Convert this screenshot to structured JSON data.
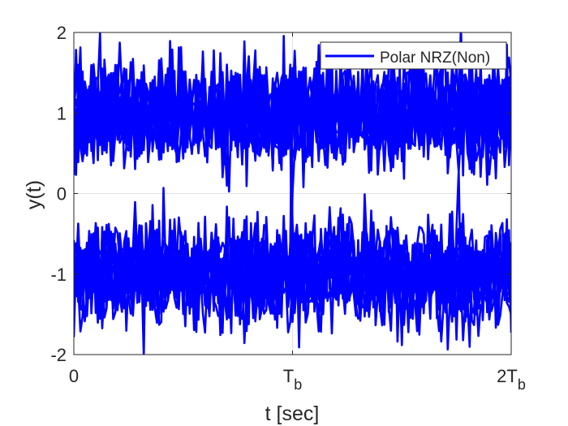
{
  "chart_data": {
    "type": "line",
    "title": "",
    "xlabel": "t [sec]",
    "ylabel": "y(t)",
    "xlim": [
      0,
      2
    ],
    "ylim": [
      -2,
      2
    ],
    "x_ticks": [
      {
        "value": 0,
        "main": "0",
        "sub": ""
      },
      {
        "value": 1,
        "main": "T",
        "sub": "b"
      },
      {
        "value": 2,
        "main": "2T",
        "sub": "b"
      }
    ],
    "y_ticks": [
      {
        "value": -2,
        "label": "-2"
      },
      {
        "value": -1,
        "label": "-1"
      },
      {
        "value": 0,
        "label": "0"
      },
      {
        "value": 1,
        "label": "1"
      },
      {
        "value": 2,
        "label": "2"
      }
    ],
    "grid": true,
    "legend": {
      "position": "top-right",
      "entries": [
        "Polar NRZ(Non)"
      ]
    },
    "series": [
      {
        "name": "Polar NRZ(Non)",
        "color": "#0000ff",
        "description_of_shape": "eye diagram",
        "levels": [
          1,
          -1
        ],
        "noise_std": 0.3,
        "traces": 24,
        "samples_per_symbol": 100
      }
    ]
  }
}
